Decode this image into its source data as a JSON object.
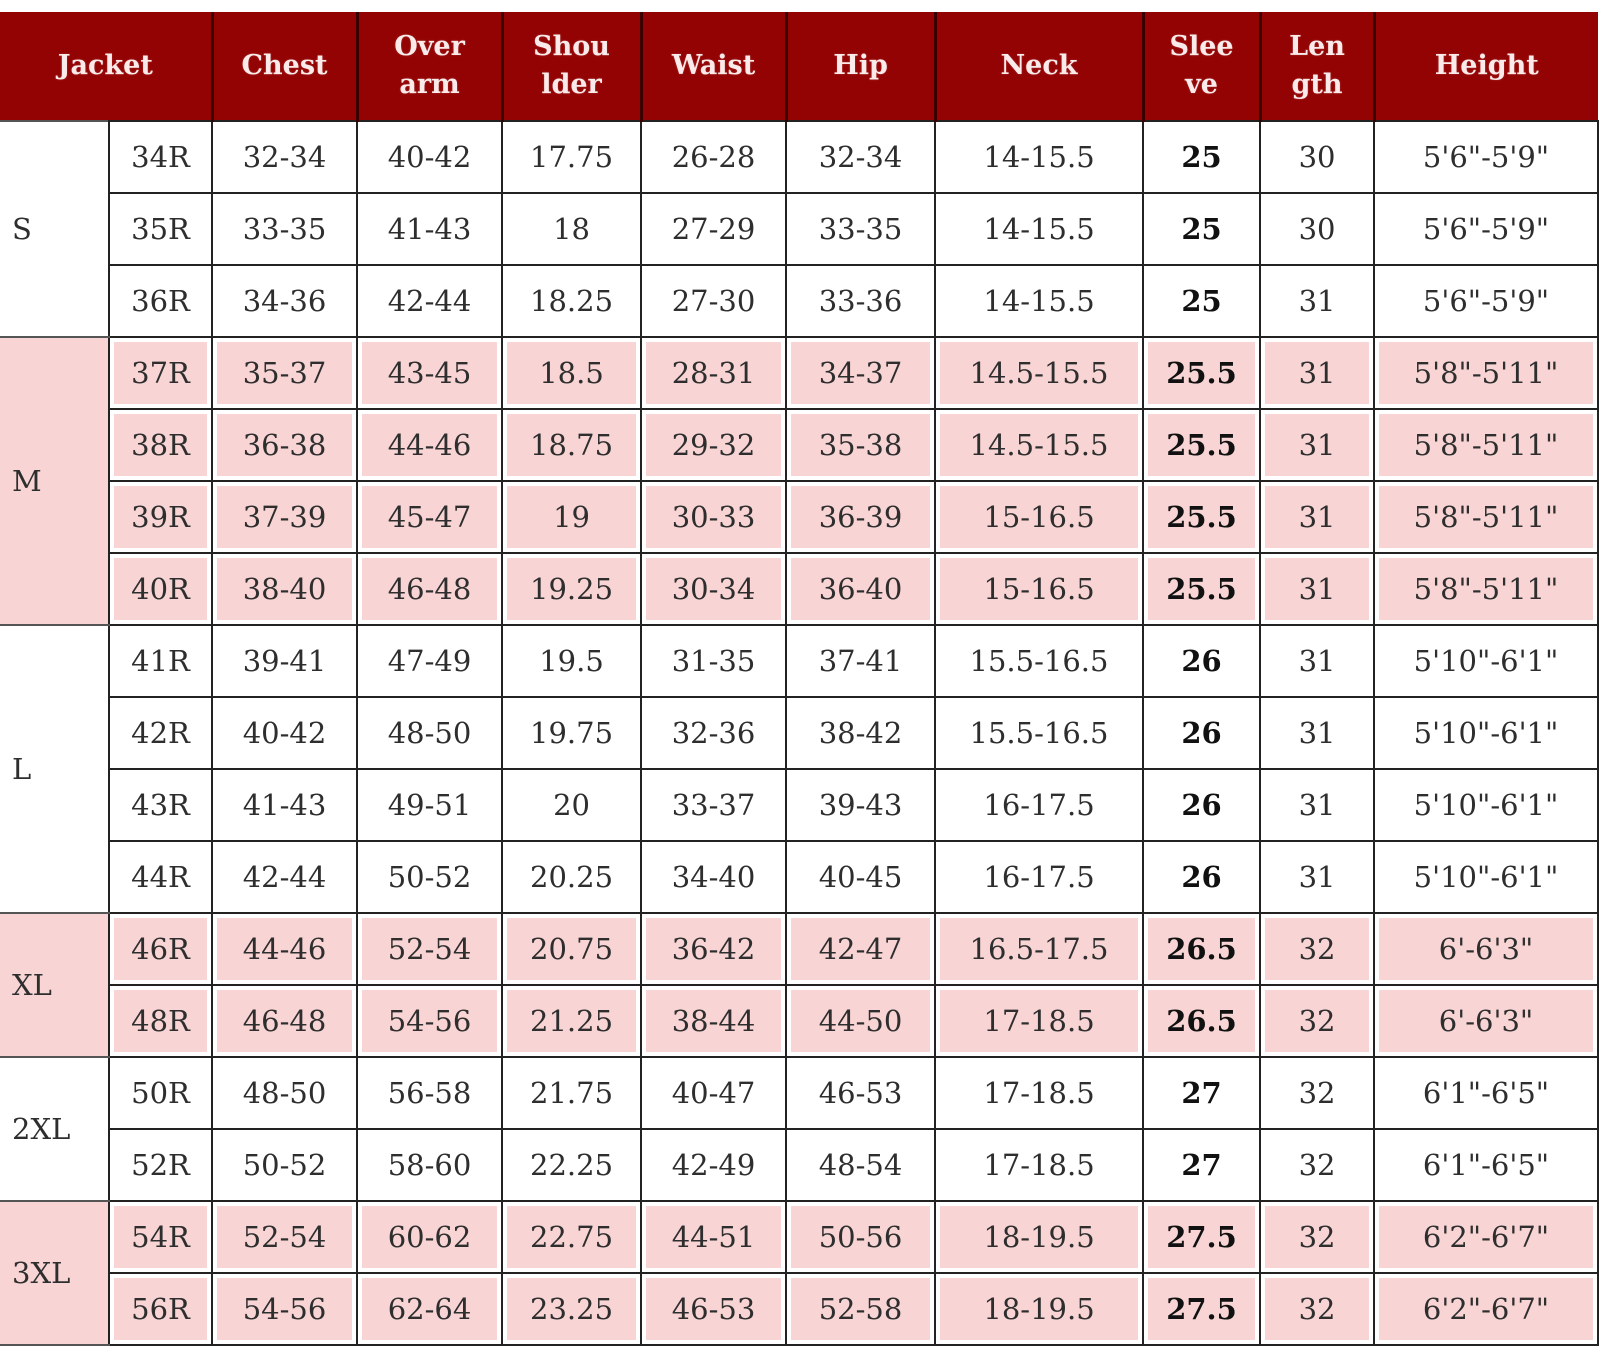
{
  "colors": {
    "header": "#930303",
    "pink_row": "#f8d4d4",
    "white_row": "#ffffff"
  },
  "headers": [
    "Jacket",
    "Chest",
    "Over arm",
    "Shou lder",
    "Waist",
    "Hip",
    "Neck",
    "Slee ve",
    "Len gth",
    "Height"
  ],
  "header_lines": [
    [
      "Jacket"
    ],
    [
      "Chest"
    ],
    [
      "Over",
      "arm"
    ],
    [
      "Shou",
      "lder"
    ],
    [
      "Waist"
    ],
    [
      "Hip"
    ],
    [
      "Neck"
    ],
    [
      "Slee",
      "ve"
    ],
    [
      "Len",
      "gth"
    ],
    [
      "Height"
    ]
  ],
  "groups": [
    {
      "label": "S",
      "pink": false,
      "rows": [
        [
          "34R",
          "32-34",
          "40-42",
          "17.75",
          "26-28",
          "32-34",
          "14-15.5",
          "25",
          "30",
          "5'6\"-5'9\""
        ],
        [
          "35R",
          "33-35",
          "41-43",
          "18",
          "27-29",
          "33-35",
          "14-15.5",
          "25",
          "30",
          "5'6\"-5'9\""
        ],
        [
          "36R",
          "34-36",
          "42-44",
          "18.25",
          "27-30",
          "33-36",
          "14-15.5",
          "25",
          "31",
          "5'6\"-5'9\""
        ]
      ]
    },
    {
      "label": "M",
      "pink": true,
      "rows": [
        [
          "37R",
          "35-37",
          "43-45",
          "18.5",
          "28-31",
          "34-37",
          "14.5-15.5",
          "25.5",
          "31",
          "5'8\"-5'11\""
        ],
        [
          "38R",
          "36-38",
          "44-46",
          "18.75",
          "29-32",
          "35-38",
          "14.5-15.5",
          "25.5",
          "31",
          "5'8\"-5'11\""
        ],
        [
          "39R",
          "37-39",
          "45-47",
          "19",
          "30-33",
          "36-39",
          "15-16.5",
          "25.5",
          "31",
          "5'8\"-5'11\""
        ],
        [
          "40R",
          "38-40",
          "46-48",
          "19.25",
          "30-34",
          "36-40",
          "15-16.5",
          "25.5",
          "31",
          "5'8\"-5'11\""
        ]
      ]
    },
    {
      "label": "L",
      "pink": false,
      "rows": [
        [
          "41R",
          "39-41",
          "47-49",
          "19.5",
          "31-35",
          "37-41",
          "15.5-16.5",
          "26",
          "31",
          "5'10\"-6'1\""
        ],
        [
          "42R",
          "40-42",
          "48-50",
          "19.75",
          "32-36",
          "38-42",
          "15.5-16.5",
          "26",
          "31",
          "5'10\"-6'1\""
        ],
        [
          "43R",
          "41-43",
          "49-51",
          "20",
          "33-37",
          "39-43",
          "16-17.5",
          "26",
          "31",
          "5'10\"-6'1\""
        ],
        [
          "44R",
          "42-44",
          "50-52",
          "20.25",
          "34-40",
          "40-45",
          "16-17.5",
          "26",
          "31",
          "5'10\"-6'1\""
        ]
      ]
    },
    {
      "label": "XL",
      "pink": true,
      "rows": [
        [
          "46R",
          "44-46",
          "52-54",
          "20.75",
          "36-42",
          "42-47",
          "16.5-17.5",
          "26.5",
          "32",
          "6'-6'3\""
        ],
        [
          "48R",
          "46-48",
          "54-56",
          "21.25",
          "38-44",
          "44-50",
          "17-18.5",
          "26.5",
          "32",
          "6'-6'3\""
        ]
      ]
    },
    {
      "label": "2XL",
      "pink": false,
      "rows": [
        [
          "50R",
          "48-50",
          "56-58",
          "21.75",
          "40-47",
          "46-53",
          "17-18.5",
          "27",
          "32",
          "6'1\"-6'5\""
        ],
        [
          "52R",
          "50-52",
          "58-60",
          "22.25",
          "42-49",
          "48-54",
          "17-18.5",
          "27",
          "32",
          "6'1\"-6'5\""
        ]
      ]
    },
    {
      "label": "3XL",
      "pink": true,
      "rows": [
        [
          "54R",
          "52-54",
          "60-62",
          "22.75",
          "44-51",
          "50-56",
          "18-19.5",
          "27.5",
          "32",
          "6'2\"-6'7\""
        ],
        [
          "56R",
          "54-56",
          "62-64",
          "23.25",
          "46-53",
          "52-58",
          "18-19.5",
          "27.5",
          "32",
          "6'2\"-6'7\""
        ]
      ]
    }
  ]
}
